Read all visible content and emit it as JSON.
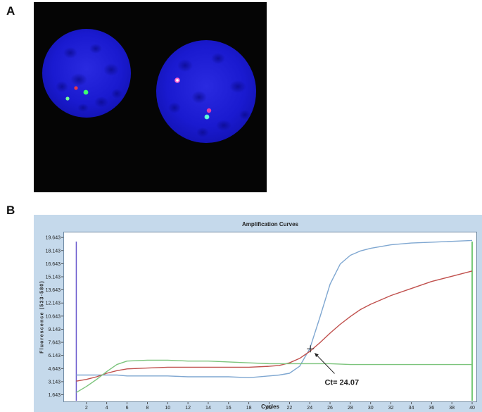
{
  "panels": {
    "a": "A",
    "b": "B"
  },
  "chart_data": {
    "type": "line",
    "title": "Amplification Curves",
    "xlabel": "Cycles",
    "ylabel": "Fluorescence (533-580)",
    "xlim": [
      0,
      40
    ],
    "ylim": [
      0.8,
      20.3
    ],
    "xticks": [
      2,
      4,
      6,
      8,
      10,
      12,
      14,
      16,
      18,
      20,
      22,
      24,
      26,
      28,
      30,
      32,
      34,
      36,
      38,
      40
    ],
    "yticks": [
      1.643,
      3.143,
      4.643,
      6.143,
      7.643,
      9.143,
      10.643,
      12.143,
      13.643,
      15.143,
      16.643,
      18.143,
      19.643
    ],
    "ytick_labels": [
      "1.643",
      "3.143",
      "4.643",
      "6.143",
      "7.643",
      "9.143",
      "10.643",
      "12.143",
      "13.643",
      "15.143",
      "16.643",
      "18.143",
      "19.643"
    ],
    "series": [
      {
        "color": "#7fa7d1",
        "x": [
          1,
          2,
          3,
          4,
          5,
          6,
          8,
          10,
          12,
          14,
          16,
          18,
          20,
          21,
          22,
          23,
          24,
          25,
          26,
          27,
          28,
          29,
          30,
          32,
          34,
          36,
          38,
          40
        ],
        "y": [
          3.9,
          3.9,
          3.9,
          3.9,
          3.9,
          3.8,
          3.8,
          3.8,
          3.7,
          3.7,
          3.7,
          3.6,
          3.8,
          3.9,
          4.1,
          4.9,
          6.9,
          10.5,
          14.3,
          16.6,
          17.6,
          18.1,
          18.4,
          18.8,
          19.0,
          19.1,
          19.2,
          19.3
        ]
      },
      {
        "color": "#c0504d",
        "x": [
          1,
          2,
          3,
          4,
          5,
          6,
          8,
          10,
          12,
          14,
          16,
          18,
          20,
          21,
          22,
          23,
          24,
          25,
          26,
          27,
          28,
          29,
          30,
          32,
          34,
          36,
          38,
          40
        ],
        "y": [
          3.2,
          3.4,
          3.7,
          4.1,
          4.4,
          4.6,
          4.7,
          4.8,
          4.8,
          4.8,
          4.8,
          4.8,
          4.9,
          5.0,
          5.3,
          5.8,
          6.6,
          7.6,
          8.7,
          9.7,
          10.6,
          11.4,
          12.0,
          13.0,
          13.8,
          14.6,
          15.2,
          15.8
        ]
      },
      {
        "color": "#7cc47c",
        "x": [
          1,
          2,
          3,
          4,
          5,
          6,
          8,
          10,
          12,
          14,
          16,
          18,
          20,
          22,
          24,
          26,
          28,
          30,
          32,
          34,
          36,
          38,
          40
        ],
        "y": [
          1.9,
          2.6,
          3.4,
          4.3,
          5.1,
          5.5,
          5.6,
          5.6,
          5.5,
          5.5,
          5.4,
          5.3,
          5.2,
          5.2,
          5.2,
          5.2,
          5.1,
          5.1,
          5.1,
          5.1,
          5.1,
          5.1,
          5.1
        ]
      }
    ],
    "annotation": {
      "text": "Ct= 24.07",
      "x": 24.07,
      "y": 6.9,
      "label_x": 27,
      "label_y": 3.1
    }
  }
}
